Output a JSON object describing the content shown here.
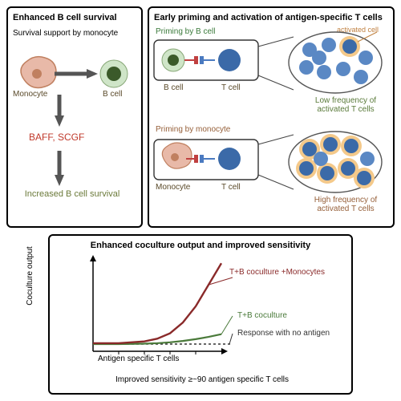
{
  "panel_tl": {
    "title": "Enhanced B cell survival",
    "subtitle": "Survival support by monocyte",
    "monocyte_label": "Monocyte",
    "bcell_label": "B cell",
    "factors_label": "BAFF, SCGF",
    "result_label": "Increased B cell survival",
    "colors": {
      "monocyte_fill": "#e8b9a8",
      "monocyte_stroke": "#c08060",
      "bcell_outer": "#cfe5c8",
      "bcell_inner": "#3b5a2a",
      "factors_text": "#c0392b",
      "result_text": "#6b7a3a",
      "subtitle_text": "#8a6a3a",
      "label_text": "#5a4a2a",
      "arrow": "#555"
    },
    "fonts": {
      "title": 11,
      "subtitle": 10,
      "label": 10,
      "factors": 12,
      "result": 11
    }
  },
  "panel_tr": {
    "title": "Early priming and activation of antigen-specific T cells",
    "top_heading": "Priming by B cell",
    "bot_heading": "Priming by monocyte",
    "bcell_label": "B cell",
    "tcell_label": "T cell",
    "monocyte_label": "Monocyte",
    "activated_label": "activated cell",
    "low_freq": "Low frequency of activated T cells",
    "high_freq": "High frequency of activated T cells",
    "colors": {
      "heading_green": "#3a7a3a",
      "heading_brown": "#96603a",
      "tcell_fill": "#3b6aa8",
      "tcell_light": "#5a88c4",
      "bcell_outer": "#cfe5c8",
      "bcell_inner": "#3b5a2a",
      "monocyte_fill": "#e8b9a8",
      "monocyte_stroke": "#c08060",
      "halo": "#f4c98a",
      "oval_stroke": "#555",
      "label_text": "#5a4a2a",
      "result_green": "#5a7a3a",
      "result_brown": "#96603a",
      "activated_text": "#c08040",
      "receptor_blue": "#4a7ac0",
      "receptor_red": "#c04040"
    },
    "fonts": {
      "title": 11,
      "heading": 10,
      "label": 10,
      "result": 10,
      "activated": 9
    }
  },
  "panel_b": {
    "title": "Enhanced coculture output and improved sensitivity",
    "ylabel": "Coculture output",
    "xlabel": "Antigen specific T cells",
    "series1_label": "T+B coculture +Monocytes",
    "series2_label": "T+B coculture",
    "baseline_label": "Response with no antigen",
    "footnote": "Improved sensitivity ≥~90 antigen specific T cells",
    "chart": {
      "type": "line",
      "xlim": [
        0,
        10
      ],
      "ylim": [
        0,
        10
      ],
      "series1": {
        "x": [
          0,
          2,
          3,
          4,
          5,
          6,
          7,
          8,
          9,
          10
        ],
        "y": [
          0.9,
          0.9,
          1.0,
          1.1,
          1.4,
          2.0,
          3.2,
          5.0,
          7.4,
          9.8
        ],
        "color": "#8a2a2a",
        "width": 2.4
      },
      "series2": {
        "x": [
          0,
          2,
          4,
          5,
          6,
          7,
          8,
          9,
          10
        ],
        "y": [
          0.8,
          0.8,
          0.85,
          0.9,
          1.0,
          1.15,
          1.35,
          1.6,
          1.9
        ],
        "color": "#4a7a3a",
        "width": 2.2
      },
      "baseline_y": 0.8,
      "baseline_color": "#333",
      "axis_color": "#000",
      "tick_color": "#000"
    },
    "colors": {
      "series1_text": "#8a2a2a",
      "series2_text": "#4a7a3a",
      "baseline_text": "#333"
    },
    "fonts": {
      "title": 11,
      "axis": 10,
      "legend": 10,
      "footnote": 10
    }
  }
}
